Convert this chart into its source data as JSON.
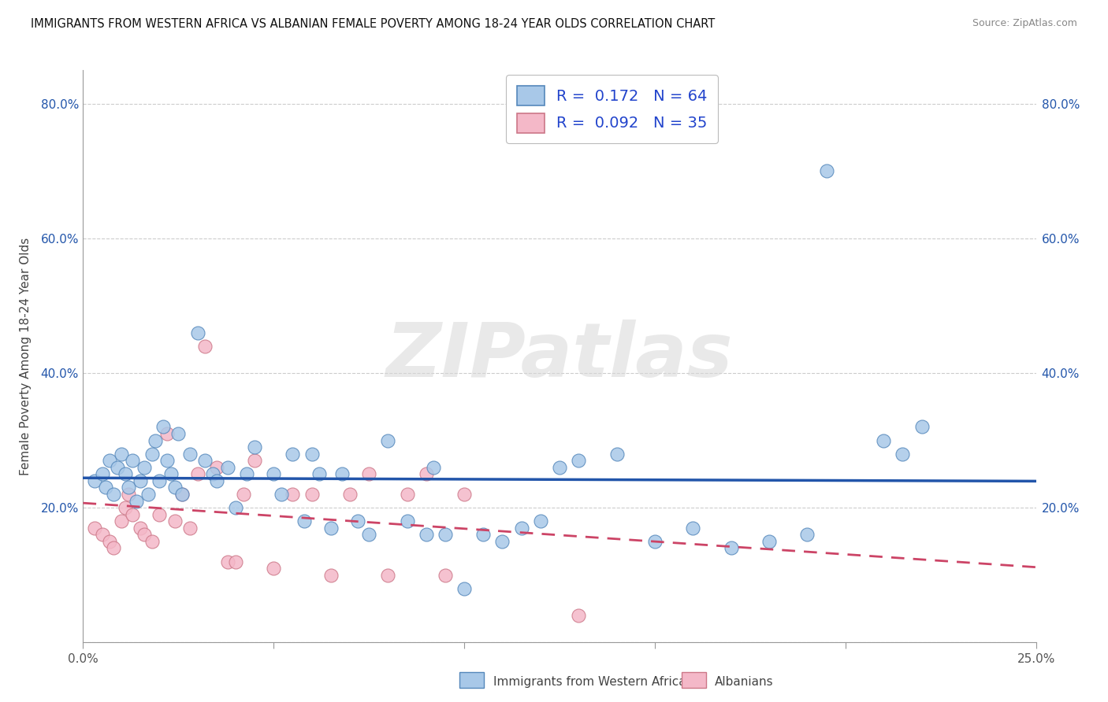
{
  "title": "IMMIGRANTS FROM WESTERN AFRICA VS ALBANIAN FEMALE POVERTY AMONG 18-24 YEAR OLDS CORRELATION CHART",
  "source": "Source: ZipAtlas.com",
  "ylabel": "Female Poverty Among 18-24 Year Olds",
  "xlim": [
    0.0,
    0.25
  ],
  "ylim": [
    0.0,
    0.85
  ],
  "xticks": [
    0.0,
    0.05,
    0.1,
    0.15,
    0.2,
    0.25
  ],
  "xticklabels": [
    "0.0%",
    "",
    "",
    "",
    "",
    "25.0%"
  ],
  "yticks": [
    0.0,
    0.2,
    0.4,
    0.6,
    0.8
  ],
  "yticklabels": [
    "",
    "20.0%",
    "40.0%",
    "60.0%",
    "80.0%"
  ],
  "blue_R": 0.172,
  "blue_N": 64,
  "pink_R": 0.092,
  "pink_N": 35,
  "blue_face": "#a8c8e8",
  "blue_edge": "#5588bb",
  "pink_face": "#f4b8c8",
  "pink_edge": "#cc7788",
  "blue_line": "#2255aa",
  "pink_line": "#cc4466",
  "watermark_text": "ZIPatlas",
  "legend1": "Immigrants from Western Africa",
  "legend2": "Albanians",
  "blue_x": [
    0.003,
    0.005,
    0.006,
    0.007,
    0.008,
    0.009,
    0.01,
    0.011,
    0.012,
    0.013,
    0.014,
    0.015,
    0.016,
    0.017,
    0.018,
    0.019,
    0.02,
    0.021,
    0.022,
    0.023,
    0.024,
    0.025,
    0.026,
    0.028,
    0.03,
    0.032,
    0.034,
    0.035,
    0.038,
    0.04,
    0.043,
    0.045,
    0.05,
    0.052,
    0.055,
    0.058,
    0.06,
    0.062,
    0.065,
    0.068,
    0.072,
    0.075,
    0.08,
    0.085,
    0.09,
    0.092,
    0.095,
    0.1,
    0.105,
    0.11,
    0.115,
    0.12,
    0.125,
    0.13,
    0.14,
    0.15,
    0.16,
    0.17,
    0.18,
    0.19,
    0.195,
    0.21,
    0.215,
    0.22
  ],
  "blue_y": [
    0.24,
    0.25,
    0.23,
    0.27,
    0.22,
    0.26,
    0.28,
    0.25,
    0.23,
    0.27,
    0.21,
    0.24,
    0.26,
    0.22,
    0.28,
    0.3,
    0.24,
    0.32,
    0.27,
    0.25,
    0.23,
    0.31,
    0.22,
    0.28,
    0.46,
    0.27,
    0.25,
    0.24,
    0.26,
    0.2,
    0.25,
    0.29,
    0.25,
    0.22,
    0.28,
    0.18,
    0.28,
    0.25,
    0.17,
    0.25,
    0.18,
    0.16,
    0.3,
    0.18,
    0.16,
    0.26,
    0.16,
    0.08,
    0.16,
    0.15,
    0.17,
    0.18,
    0.26,
    0.27,
    0.28,
    0.15,
    0.17,
    0.14,
    0.15,
    0.16,
    0.7,
    0.3,
    0.28,
    0.32
  ],
  "pink_x": [
    0.003,
    0.005,
    0.007,
    0.008,
    0.01,
    0.011,
    0.012,
    0.013,
    0.015,
    0.016,
    0.018,
    0.02,
    0.022,
    0.024,
    0.026,
    0.028,
    0.03,
    0.032,
    0.035,
    0.038,
    0.04,
    0.042,
    0.045,
    0.05,
    0.055,
    0.06,
    0.065,
    0.07,
    0.075,
    0.08,
    0.085,
    0.09,
    0.095,
    0.1,
    0.13
  ],
  "pink_y": [
    0.17,
    0.16,
    0.15,
    0.14,
    0.18,
    0.2,
    0.22,
    0.19,
    0.17,
    0.16,
    0.15,
    0.19,
    0.31,
    0.18,
    0.22,
    0.17,
    0.25,
    0.44,
    0.26,
    0.12,
    0.12,
    0.22,
    0.27,
    0.11,
    0.22,
    0.22,
    0.1,
    0.22,
    0.25,
    0.1,
    0.22,
    0.25,
    0.1,
    0.22,
    0.04
  ],
  "bg_color": "#ffffff",
  "grid_color": "#cccccc",
  "spine_color": "#999999"
}
